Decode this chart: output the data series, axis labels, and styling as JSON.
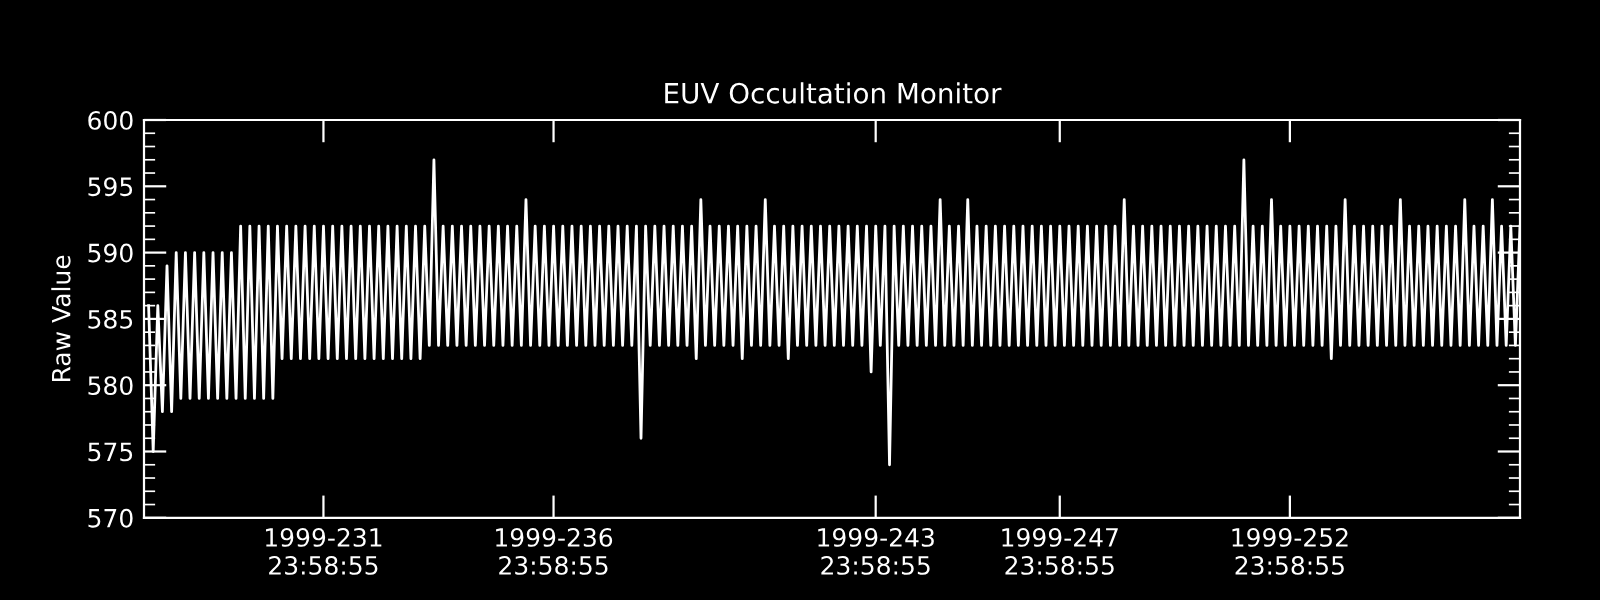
{
  "chart_data": {
    "type": "line",
    "title": "EUV Occultation Monitor",
    "ylabel": "Raw Value",
    "xlim": [
      "1999-08-16T02:24",
      "1999-09-15T00:00"
    ],
    "ylim": [
      570,
      600
    ],
    "yticks": [
      570,
      575,
      580,
      585,
      590,
      595,
      600
    ],
    "xticks": [
      {
        "value": "1999-08-19T23:58:55",
        "label": "1999-231\n23:58:55"
      },
      {
        "value": "1999-08-24T23:58:55",
        "label": "1999-236\n23:58:55"
      },
      {
        "value": "1999-08-31T23:58:55",
        "label": "1999-243\n23:58:55"
      },
      {
        "value": "1999-09-04T23:58:55",
        "label": "1999-247\n23:58:55"
      },
      {
        "value": "1999-09-09T23:58:55",
        "label": "1999-252\n23:58:55"
      }
    ],
    "grid": false,
    "marker": "none",
    "line_style": "solid",
    "series": [
      {
        "color": "#ffffff",
        "x": [
          "1999-08-16T04:48",
          "1999-08-16T07:12",
          "1999-08-16T09:36",
          "1999-08-16T12:00",
          "1999-08-16T14:24",
          "1999-08-16T16:48",
          "1999-08-16T19:12",
          "1999-08-16T21:36",
          "1999-08-17T00:00",
          "1999-08-17T02:24",
          "1999-08-17T04:48",
          "1999-08-17T07:12",
          "1999-08-17T09:36",
          "1999-08-17T12:00",
          "1999-08-17T14:24",
          "1999-08-17T16:48",
          "1999-08-17T19:12",
          "1999-08-17T21:36",
          "1999-08-18T00:00",
          "1999-08-18T02:24",
          "1999-08-18T04:48",
          "1999-08-18T07:12",
          "1999-08-18T09:36",
          "1999-08-18T12:00",
          "1999-08-18T14:24",
          "1999-08-18T16:48",
          "1999-08-18T19:12",
          "1999-08-18T21:36",
          "1999-08-19T00:00",
          "1999-08-19T02:24",
          "1999-08-19T04:48",
          "1999-08-19T07:12",
          "1999-08-19T09:36",
          "1999-08-19T12:00",
          "1999-08-19T14:24",
          "1999-08-19T16:48",
          "1999-08-19T19:12",
          "1999-08-19T21:36",
          "1999-08-20T00:00",
          "1999-08-20T02:24",
          "1999-08-20T04:48",
          "1999-08-20T07:12",
          "1999-08-20T09:36",
          "1999-08-20T12:00",
          "1999-08-20T14:24",
          "1999-08-20T16:48",
          "1999-08-20T19:12",
          "1999-08-20T21:36",
          "1999-08-21T00:00",
          "1999-08-21T02:24",
          "1999-08-21T04:48",
          "1999-08-21T07:12",
          "1999-08-21T09:36",
          "1999-08-21T12:00",
          "1999-08-21T14:24",
          "1999-08-21T16:48",
          "1999-08-21T19:12",
          "1999-08-21T21:36",
          "1999-08-22T00:00",
          "1999-08-22T02:24",
          "1999-08-22T04:48",
          "1999-08-22T07:12",
          "1999-08-22T09:36",
          "1999-08-22T12:00",
          "1999-08-22T14:24",
          "1999-08-22T16:48",
          "1999-08-22T19:12",
          "1999-08-22T21:36",
          "1999-08-23T00:00",
          "1999-08-23T02:24",
          "1999-08-23T04:48",
          "1999-08-23T07:12",
          "1999-08-23T09:36",
          "1999-08-23T12:00",
          "1999-08-23T14:24",
          "1999-08-23T16:48",
          "1999-08-23T19:12",
          "1999-08-23T21:36",
          "1999-08-24T00:00",
          "1999-08-24T02:24",
          "1999-08-24T04:48",
          "1999-08-24T07:12",
          "1999-08-24T09:36",
          "1999-08-24T12:00",
          "1999-08-24T14:24",
          "1999-08-24T16:48",
          "1999-08-24T19:12",
          "1999-08-24T21:36",
          "1999-08-25T00:00",
          "1999-08-25T02:24",
          "1999-08-25T04:48",
          "1999-08-25T07:12",
          "1999-08-25T09:36",
          "1999-08-25T12:00",
          "1999-08-25T14:24",
          "1999-08-25T16:48",
          "1999-08-25T19:12",
          "1999-08-25T21:36",
          "1999-08-26T00:00",
          "1999-08-26T02:24",
          "1999-08-26T04:48",
          "1999-08-26T07:12",
          "1999-08-26T09:36",
          "1999-08-26T12:00",
          "1999-08-26T14:24",
          "1999-08-26T16:48",
          "1999-08-26T19:12",
          "1999-08-26T21:36",
          "1999-08-27T00:00",
          "1999-08-27T02:24",
          "1999-08-27T04:48",
          "1999-08-27T07:12",
          "1999-08-27T09:36",
          "1999-08-27T12:00",
          "1999-08-27T14:24",
          "1999-08-27T16:48",
          "1999-08-27T19:12",
          "1999-08-27T21:36",
          "1999-08-28T00:00",
          "1999-08-28T02:24",
          "1999-08-28T04:48",
          "1999-08-28T07:12",
          "1999-08-28T09:36",
          "1999-08-28T12:00",
          "1999-08-28T14:24",
          "1999-08-28T16:48",
          "1999-08-28T19:12",
          "1999-08-28T21:36",
          "1999-08-29T00:00",
          "1999-08-29T02:24",
          "1999-08-29T04:48",
          "1999-08-29T07:12",
          "1999-08-29T09:36",
          "1999-08-29T12:00",
          "1999-08-29T14:24",
          "1999-08-29T16:48",
          "1999-08-29T19:12",
          "1999-08-29T21:36",
          "1999-08-30T00:00",
          "1999-08-30T02:24",
          "1999-08-30T04:48",
          "1999-08-30T07:12",
          "1999-08-30T09:36",
          "1999-08-30T12:00",
          "1999-08-30T14:24",
          "1999-08-30T16:48",
          "1999-08-30T19:12",
          "1999-08-30T21:36",
          "1999-08-31T00:00",
          "1999-08-31T02:24",
          "1999-08-31T04:48",
          "1999-08-31T07:12",
          "1999-08-31T09:36",
          "1999-08-31T12:00",
          "1999-08-31T14:24",
          "1999-08-31T16:48",
          "1999-08-31T19:12",
          "1999-08-31T21:36",
          "1999-09-01T00:00",
          "1999-09-01T02:24",
          "1999-09-01T04:48",
          "1999-09-01T07:12",
          "1999-09-01T09:36",
          "1999-09-01T12:00",
          "1999-09-01T14:24",
          "1999-09-01T16:48",
          "1999-09-01T19:12",
          "1999-09-01T21:36",
          "1999-09-02T00:00",
          "1999-09-02T02:24",
          "1999-09-02T04:48",
          "1999-09-02T07:12",
          "1999-09-02T09:36",
          "1999-09-02T12:00",
          "1999-09-02T14:24",
          "1999-09-02T16:48",
          "1999-09-02T19:12",
          "1999-09-02T21:36",
          "1999-09-03T00:00",
          "1999-09-03T02:24",
          "1999-09-03T04:48",
          "1999-09-03T07:12",
          "1999-09-03T09:36",
          "1999-09-03T12:00",
          "1999-09-03T14:24",
          "1999-09-03T16:48",
          "1999-09-03T19:12",
          "1999-09-03T21:36",
          "1999-09-04T00:00",
          "1999-09-04T02:24",
          "1999-09-04T04:48",
          "1999-09-04T07:12",
          "1999-09-04T09:36",
          "1999-09-04T12:00",
          "1999-09-04T14:24",
          "1999-09-04T16:48",
          "1999-09-04T19:12",
          "1999-09-04T21:36",
          "1999-09-05T00:00",
          "1999-09-05T02:24",
          "1999-09-05T04:48",
          "1999-09-05T07:12",
          "1999-09-05T09:36",
          "1999-09-05T12:00",
          "1999-09-05T14:24",
          "1999-09-05T16:48",
          "1999-09-05T19:12",
          "1999-09-05T21:36",
          "1999-09-06T00:00",
          "1999-09-06T02:24",
          "1999-09-06T04:48",
          "1999-09-06T07:12",
          "1999-09-06T09:36",
          "1999-09-06T12:00",
          "1999-09-06T14:24",
          "1999-09-06T16:48",
          "1999-09-06T19:12",
          "1999-09-06T21:36",
          "1999-09-07T00:00",
          "1999-09-07T02:24",
          "1999-09-07T04:48",
          "1999-09-07T07:12",
          "1999-09-07T09:36",
          "1999-09-07T12:00",
          "1999-09-07T14:24",
          "1999-09-07T16:48",
          "1999-09-07T19:12",
          "1999-09-07T21:36",
          "1999-09-08T00:00",
          "1999-09-08T02:24",
          "1999-09-08T04:48",
          "1999-09-08T07:12",
          "1999-09-08T09:36",
          "1999-09-08T12:00",
          "1999-09-08T14:24",
          "1999-09-08T16:48",
          "1999-09-08T19:12",
          "1999-09-08T21:36",
          "1999-09-09T00:00",
          "1999-09-09T02:24",
          "1999-09-09T04:48",
          "1999-09-09T07:12",
          "1999-09-09T09:36",
          "1999-09-09T12:00",
          "1999-09-09T14:24",
          "1999-09-09T16:48",
          "1999-09-09T19:12",
          "1999-09-09T21:36",
          "1999-09-10T00:00",
          "1999-09-10T02:24",
          "1999-09-10T04:48",
          "1999-09-10T07:12",
          "1999-09-10T09:36",
          "1999-09-10T12:00",
          "1999-09-10T14:24",
          "1999-09-10T16:48",
          "1999-09-10T19:12",
          "1999-09-10T21:36",
          "1999-09-11T00:00",
          "1999-09-11T02:24",
          "1999-09-11T04:48",
          "1999-09-11T07:12",
          "1999-09-11T09:36",
          "1999-09-11T12:00",
          "1999-09-11T14:24",
          "1999-09-11T16:48",
          "1999-09-11T19:12",
          "1999-09-11T21:36",
          "1999-09-12T00:00",
          "1999-09-12T02:24",
          "1999-09-12T04:48",
          "1999-09-12T07:12",
          "1999-09-12T09:36",
          "1999-09-12T12:00",
          "1999-09-12T14:24",
          "1999-09-12T16:48",
          "1999-09-12T19:12",
          "1999-09-12T21:36",
          "1999-09-13T00:00",
          "1999-09-13T02:24",
          "1999-09-13T04:48",
          "1999-09-13T07:12",
          "1999-09-13T09:36",
          "1999-09-13T12:00",
          "1999-09-13T14:24",
          "1999-09-13T16:48",
          "1999-09-13T19:12",
          "1999-09-13T21:36",
          "1999-09-14T00:00",
          "1999-09-14T02:24",
          "1999-09-14T04:48",
          "1999-09-14T07:12",
          "1999-09-14T09:36",
          "1999-09-14T12:00",
          "1999-09-14T14:24",
          "1999-09-14T16:48",
          "1999-09-14T19:12",
          "1999-09-14T21:36",
          "1999-09-15T00:00"
        ],
        "values": [
          586,
          575,
          586,
          578,
          589,
          578,
          590,
          579,
          590,
          579,
          590,
          579,
          590,
          579,
          590,
          579,
          590,
          579,
          590,
          579,
          592,
          579,
          592,
          579,
          592,
          579,
          592,
          579,
          592,
          582,
          592,
          582,
          592,
          582,
          592,
          582,
          592,
          582,
          592,
          582,
          592,
          582,
          592,
          582,
          592,
          582,
          592,
          582,
          592,
          582,
          592,
          582,
          592,
          582,
          592,
          582,
          592,
          582,
          592,
          582,
          592,
          583,
          597,
          583,
          592,
          583,
          592,
          583,
          592,
          583,
          592,
          583,
          592,
          583,
          592,
          583,
          592,
          583,
          592,
          583,
          592,
          583,
          594,
          583,
          592,
          583,
          592,
          583,
          592,
          583,
          592,
          583,
          592,
          583,
          592,
          583,
          592,
          583,
          592,
          583,
          592,
          583,
          592,
          583,
          592,
          583,
          592,
          576,
          592,
          583,
          592,
          583,
          592,
          583,
          592,
          583,
          592,
          583,
          592,
          582,
          594,
          583,
          592,
          583,
          592,
          583,
          592,
          583,
          592,
          582,
          592,
          583,
          592,
          583,
          594,
          583,
          592,
          583,
          592,
          582,
          592,
          583,
          592,
          583,
          592,
          583,
          592,
          583,
          592,
          583,
          592,
          583,
          592,
          583,
          592,
          583,
          592,
          581,
          592,
          583,
          592,
          574,
          592,
          583,
          592,
          583,
          592,
          583,
          592,
          583,
          592,
          583,
          594,
          583,
          592,
          583,
          592,
          583,
          594,
          583,
          592,
          583,
          592,
          583,
          592,
          583,
          592,
          583,
          592,
          583,
          592,
          583,
          592,
          583,
          592,
          583,
          592,
          583,
          592,
          583,
          592,
          583,
          592,
          583,
          592,
          583,
          592,
          583,
          592,
          583,
          592,
          583,
          594,
          583,
          592,
          583,
          592,
          583,
          592,
          583,
          592,
          583,
          592,
          583,
          592,
          583,
          592,
          583,
          592,
          583,
          592,
          583,
          592,
          583,
          592,
          583,
          592,
          583,
          597,
          583,
          592,
          583,
          592,
          583,
          594,
          583,
          592,
          583,
          592,
          583,
          592,
          583,
          592,
          583,
          592,
          583,
          592,
          582,
          592,
          583,
          594,
          583,
          592,
          583,
          592,
          583,
          592,
          583,
          592,
          583,
          592,
          583,
          594,
          583,
          592,
          583,
          592,
          583,
          592,
          583,
          592,
          583,
          592,
          583,
          592,
          583,
          594,
          583,
          592,
          583,
          592,
          583,
          594,
          583,
          592,
          583,
          592,
          583,
          592
        ]
      }
    ]
  }
}
